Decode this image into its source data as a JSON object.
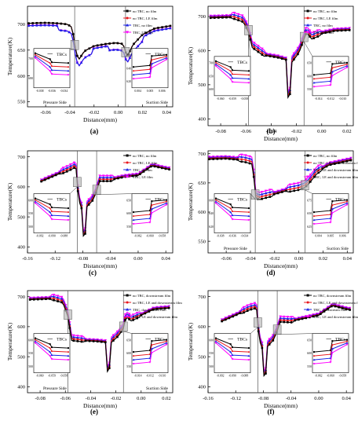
{
  "figure": {
    "panels": [
      {
        "id": "a",
        "caption": "(a)",
        "xlabel": "Distance(mm)",
        "ylabel": "Temperature(K)",
        "xlim": [
          -0.075,
          0.045
        ],
        "ylim": [
          540,
          735
        ],
        "xticks": [
          -0.06,
          -0.04,
          -0.02,
          0.0,
          0.02,
          0.04
        ],
        "xtick_labels": [
          "-0.06",
          "-0.04",
          "-0.02",
          "0.00",
          "0.02",
          "0.04"
        ],
        "yticks": [
          550,
          600,
          650,
          700
        ],
        "ytick_labels": [
          "550",
          "600",
          "650",
          "700"
        ],
        "vlines": [
          -0.036,
          0.006
        ],
        "legend": [
          "no TBC, no film",
          "no TBC, LE film",
          "TBC, no film",
          "TBC, LE film"
        ],
        "side_labels": [
          "Pressure Side",
          "Suction Side"
        ],
        "insets": [
          {
            "pos": "left",
            "annotation": "TBCs",
            "xticks": [
              "-0.038",
              "-0.036",
              "-0.034"
            ],
            "yticks": [
              "680",
              "700"
            ]
          },
          {
            "pos": "right",
            "annotation": "TBCs",
            "xticks": [
              "0.004",
              "0.005",
              "0.006"
            ],
            "yticks": [
              "620",
              "640",
              "660"
            ]
          }
        ],
        "profile": [
          [
            -0.074,
            702
          ],
          [
            -0.06,
            703
          ],
          [
            -0.05,
            702
          ],
          [
            -0.042,
            700
          ],
          [
            -0.038,
            694
          ],
          [
            -0.036,
            660
          ],
          [
            -0.033,
            630
          ],
          [
            -0.028,
            648
          ],
          [
            -0.02,
            658
          ],
          [
            -0.01,
            662
          ],
          [
            -0.002,
            664
          ],
          [
            0.004,
            662
          ],
          [
            0.006,
            646
          ],
          [
            0.008,
            640
          ],
          [
            0.012,
            660
          ],
          [
            0.02,
            680
          ],
          [
            0.03,
            692
          ],
          [
            0.043,
            697
          ]
        ],
        "offsets": [
          0,
          0,
          13,
          13
        ]
      },
      {
        "id": "b",
        "caption": "(b)",
        "xlabel": "Distance(mm)",
        "ylabel": "Temperature(K)",
        "xlim": [
          -0.09,
          0.025
        ],
        "ylim": [
          380,
          730
        ],
        "xticks": [
          -0.08,
          -0.06,
          -0.04,
          -0.02,
          0.0,
          0.02
        ],
        "xtick_labels": [
          "-0.08",
          "-0.06",
          "-0.04",
          "-0.02",
          "0.00",
          "0.02"
        ],
        "yticks": [
          400,
          500,
          600,
          700
        ],
        "ytick_labels": [
          "400",
          "500",
          "600",
          "700"
        ],
        "vlines": [
          -0.058,
          -0.014
        ],
        "legend": [
          "no TBC, no film",
          "no TBC, LE film",
          "TBC, no film",
          "TBC, LE film"
        ],
        "side_labels": [],
        "insets": [
          {
            "pos": "left",
            "annotation": "TBCs",
            "xticks": [
              "-0.060",
              "-0.059",
              "-0.058"
            ],
            "yticks": [
              "600",
              "650",
              "700"
            ]
          },
          {
            "pos": "right",
            "annotation": "TBCs",
            "xticks": [
              "-0.014",
              "-0.012",
              "-0.010"
            ],
            "yticks": [
              "550",
              "600",
              "650"
            ]
          }
        ],
        "profile": [
          [
            -0.088,
            698
          ],
          [
            -0.07,
            700
          ],
          [
            -0.062,
            690
          ],
          [
            -0.058,
            660
          ],
          [
            -0.055,
            615
          ],
          [
            -0.045,
            588
          ],
          [
            -0.035,
            582
          ],
          [
            -0.028,
            575
          ],
          [
            -0.026,
            410
          ],
          [
            -0.024,
            570
          ],
          [
            -0.018,
            600
          ],
          [
            -0.014,
            640
          ],
          [
            -0.012,
            660
          ],
          [
            -0.008,
            640
          ],
          [
            0.0,
            652
          ],
          [
            0.01,
            660
          ],
          [
            0.022,
            662
          ]
        ],
        "offsets": [
          6,
          0,
          -6,
          -12
        ]
      },
      {
        "id": "c",
        "caption": "(c)",
        "xlabel": "Distance(mm)",
        "ylabel": "Temperature(K)",
        "xlim": [
          -0.16,
          0.05
        ],
        "ylim": [
          380,
          720
        ],
        "xticks": [
          -0.16,
          -0.12,
          -0.08,
          -0.04,
          0.0,
          0.04
        ],
        "xtick_labels": [
          "-0.16",
          "-0.12",
          "-0.08",
          "-0.04",
          "0.00",
          "0.04"
        ],
        "yticks": [
          400,
          500,
          600,
          700
        ],
        "ytick_labels": [
          "400",
          "500",
          "600",
          "700"
        ],
        "vlines": [
          -0.088,
          -0.06
        ],
        "legend": [
          "no TBC, no film",
          "no TBC, LE film",
          "TBC, no film",
          "TBC, LE film"
        ],
        "side_labels": [],
        "insets": [
          {
            "pos": "left",
            "annotation": "TBCs",
            "xticks": [
              "-0.092",
              "-0.090",
              "-0.088"
            ],
            "yticks": [
              "500",
              "550",
              "600"
            ]
          },
          {
            "pos": "right",
            "annotation": "TBCs",
            "xticks": [
              "-0.062",
              "-0.060",
              "-0.058"
            ],
            "yticks": [
              "550",
              "600",
              "650"
            ]
          }
        ],
        "profile": [
          [
            -0.14,
            620
          ],
          [
            -0.12,
            640
          ],
          [
            -0.1,
            660
          ],
          [
            -0.09,
            672
          ],
          [
            -0.086,
            560
          ],
          [
            -0.082,
            540
          ],
          [
            -0.078,
            400
          ],
          [
            -0.074,
            540
          ],
          [
            -0.066,
            560
          ],
          [
            -0.06,
            590
          ],
          [
            -0.056,
            625
          ],
          [
            -0.04,
            625
          ],
          [
            -0.02,
            635
          ],
          [
            0.0,
            640
          ],
          [
            0.02,
            672
          ],
          [
            0.04,
            662
          ],
          [
            0.045,
            660
          ]
        ],
        "offsets": [
          6,
          0,
          -6,
          -12
        ]
      },
      {
        "id": "d",
        "caption": "(d)",
        "xlabel": "Distance(mm)",
        "ylabel": "Temperature(K)",
        "xlim": [
          -0.075,
          0.045
        ],
        "ylim": [
          530,
          705
        ],
        "xticks": [
          -0.06,
          -0.04,
          -0.02,
          0.0,
          0.02,
          0.04
        ],
        "xtick_labels": [
          "-0.06",
          "-0.04",
          "-0.02",
          "0.00",
          "0.02",
          "0.04"
        ],
        "yticks": [
          550,
          600,
          650,
          700
        ],
        "ytick_labels": [
          "550",
          "600",
          "650",
          "700"
        ],
        "vlines": [
          -0.036,
          0.005
        ],
        "legend": [
          "no TBC, no film",
          "no TBC, LE and downstream film",
          "TBC, LE and downstream film",
          "TBC, LE and downstream film"
        ],
        "side_labels": [
          "Pressure Side",
          "Suction Side"
        ],
        "insets": [
          {
            "pos": "left",
            "annotation": "TBCs",
            "xticks": [
              "-0.038",
              "-0.036",
              "-0.034"
            ],
            "yticks": [
              "620",
              "640",
              "660"
            ]
          },
          {
            "pos": "right",
            "annotation": "TBCs",
            "xticks": [
              "0.004",
              "0.005",
              "0.006"
            ],
            "yticks": [
              "625",
              "650",
              "675"
            ]
          }
        ],
        "profile": [
          [
            -0.074,
            692
          ],
          [
            -0.06,
            693
          ],
          [
            -0.045,
            690
          ],
          [
            -0.038,
            686
          ],
          [
            -0.036,
            630
          ],
          [
            -0.033,
            625
          ],
          [
            -0.028,
            628
          ],
          [
            -0.02,
            632
          ],
          [
            -0.01,
            638
          ],
          [
            0.0,
            642
          ],
          [
            0.005,
            646
          ],
          [
            0.008,
            652
          ],
          [
            0.015,
            670
          ],
          [
            0.025,
            682
          ],
          [
            0.043,
            690
          ]
        ],
        "offsets": [
          4,
          0,
          -4,
          -8
        ]
      },
      {
        "id": "e",
        "caption": "(e)",
        "xlabel": "Distance(mm)",
        "ylabel": "Temperature(K)",
        "xlim": [
          -0.09,
          0.025
        ],
        "ylim": [
          380,
          720
        ],
        "xticks": [
          -0.08,
          -0.06,
          -0.04,
          -0.02,
          0.0,
          0.02
        ],
        "xtick_labels": [
          "-0.08",
          "-0.06",
          "-0.04",
          "-0.02",
          "0.00",
          "0.02"
        ],
        "yticks": [
          400,
          500,
          600,
          700
        ],
        "ytick_labels": [
          "400",
          "500",
          "600",
          "700"
        ],
        "vlines": [
          -0.058,
          -0.014
        ],
        "legend": [
          "no TBC, downstream film",
          "no TBC, LE and downstream film",
          "TBC, downstream film",
          "TBC, LE and downstream film"
        ],
        "side_labels": [
          "Pressure Side",
          "Suction Side"
        ],
        "insets": [
          {
            "pos": "left",
            "annotation": "TBCs",
            "xticks": [
              "-0.060",
              "-0.059",
              "-0.058"
            ],
            "yticks": [
              "500",
              "550",
              "600"
            ]
          },
          {
            "pos": "right",
            "annotation": "TBCs",
            "xticks": [
              "-0.014",
              "-0.012",
              "-0.010"
            ],
            "yticks": [
              "550",
              "600",
              "650"
            ]
          }
        ],
        "profile": [
          [
            -0.088,
            692
          ],
          [
            -0.07,
            695
          ],
          [
            -0.062,
            686
          ],
          [
            -0.058,
            640
          ],
          [
            -0.055,
            560
          ],
          [
            -0.045,
            555
          ],
          [
            -0.035,
            553
          ],
          [
            -0.028,
            550
          ],
          [
            -0.026,
            405
          ],
          [
            -0.024,
            552
          ],
          [
            -0.018,
            575
          ],
          [
            -0.014,
            600
          ],
          [
            -0.012,
            640
          ],
          [
            -0.008,
            625
          ],
          [
            0.0,
            640
          ],
          [
            0.01,
            660
          ],
          [
            0.022,
            664
          ]
        ],
        "offsets": [
          6,
          0,
          -6,
          -12
        ]
      },
      {
        "id": "f",
        "caption": "(f)",
        "xlabel": "Distance(mm)",
        "ylabel": "Temperature(K)",
        "xlim": [
          -0.16,
          0.05
        ],
        "ylim": [
          380,
          720
        ],
        "xticks": [
          -0.16,
          -0.12,
          -0.08,
          -0.04,
          0.0,
          0.04
        ],
        "xtick_labels": [
          "-0.16",
          "-0.12",
          "-0.08",
          "-0.04",
          "0.00",
          "0.04"
        ],
        "yticks": [
          400,
          500,
          600,
          700
        ],
        "ytick_labels": [
          "400",
          "500",
          "600",
          "700"
        ],
        "vlines": [
          -0.088,
          -0.06
        ],
        "legend": [
          "no TBC, downstream film",
          "no TBC, LE and downstream film",
          "TBC, downstream film",
          "TBC, LE and downstream film"
        ],
        "side_labels": [],
        "insets": [
          {
            "pos": "left",
            "annotation": "TBCs",
            "xticks": [
              "-0.092",
              "-0.090",
              "-0.088"
            ],
            "yticks": [
              "500",
              "550",
              "600"
            ]
          },
          {
            "pos": "right",
            "annotation": "TBCs",
            "xticks": [
              "-0.062",
              "-0.060",
              "-0.058"
            ],
            "yticks": [
              "550",
              "600",
              "650"
            ]
          }
        ],
        "profile": [
          [
            -0.14,
            620
          ],
          [
            -0.12,
            640
          ],
          [
            -0.1,
            662
          ],
          [
            -0.09,
            668
          ],
          [
            -0.086,
            560
          ],
          [
            -0.082,
            540
          ],
          [
            -0.078,
            400
          ],
          [
            -0.074,
            540
          ],
          [
            -0.066,
            560
          ],
          [
            -0.06,
            590
          ],
          [
            -0.056,
            622
          ],
          [
            -0.04,
            620
          ],
          [
            -0.02,
            630
          ],
          [
            0.0,
            640
          ],
          [
            0.02,
            672
          ],
          [
            0.04,
            660
          ],
          [
            0.045,
            658
          ]
        ],
        "offsets": [
          6,
          0,
          -6,
          -12
        ]
      }
    ]
  },
  "colors": {
    "series": [
      "#000000",
      "#e8141b",
      "#1a20e6",
      "#ff00ff"
    ],
    "highlight": "#bbbbbb"
  },
  "series_markers": [
    "square",
    "circle",
    "triangle",
    "triangle-down"
  ]
}
